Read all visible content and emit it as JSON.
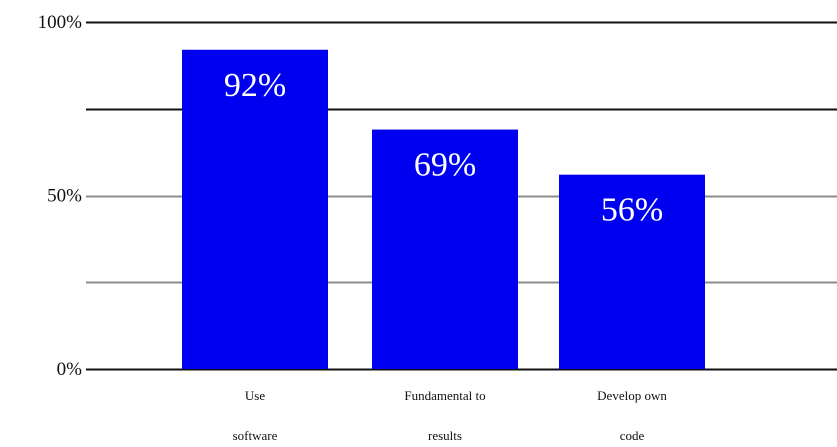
{
  "chart_data": {
    "type": "bar",
    "title": "",
    "xlabel": "",
    "ylabel": "",
    "categories": [
      [
        "Use",
        "software"
      ],
      [
        "Fundamental to",
        "results"
      ],
      [
        "Develop own",
        "code"
      ]
    ],
    "values": [
      92,
      69,
      56
    ],
    "data_labels": [
      "92%",
      "69%",
      "56%"
    ],
    "ylim": [
      0,
      100
    ],
    "y_ticks": [
      {
        "value": 0,
        "label": "0%"
      },
      {
        "value": 50,
        "label": "50%"
      },
      {
        "value": 100,
        "label": "100%"
      }
    ],
    "gridlines": [
      0,
      25,
      50,
      75,
      100
    ],
    "grid": true,
    "legend": "none",
    "colors": {
      "bar": "#0000f0",
      "grid_major": "#111111",
      "grid_minor": "#8c8c8c",
      "label": "#ffffff"
    }
  }
}
